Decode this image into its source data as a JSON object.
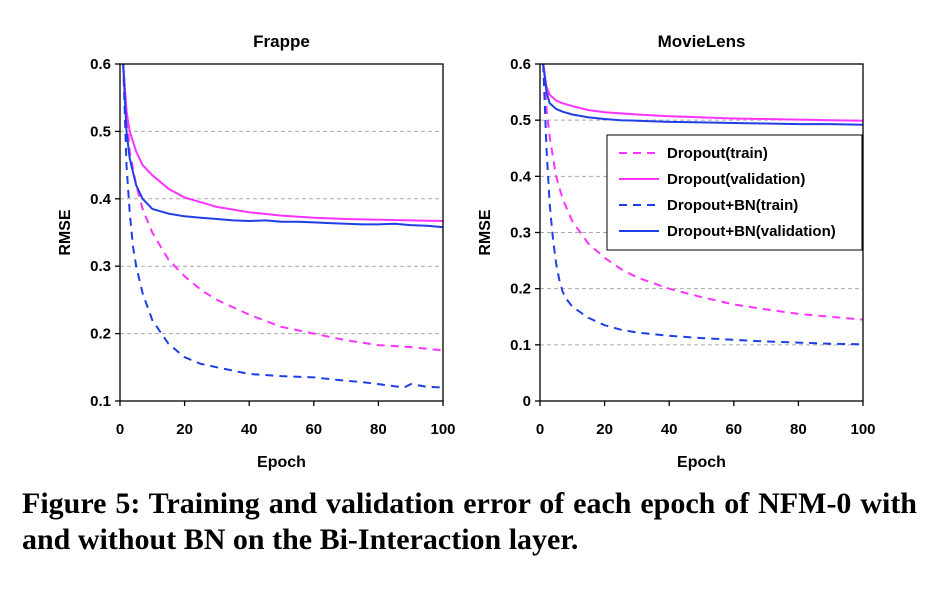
{
  "caption": "Figure 5: Training and validation error of each epoch of NFM-0 with and without BN on the Bi-Interaction layer.",
  "colors": {
    "dropout": "#ff33ff",
    "dropout_bn": "#1f3fe6",
    "grid": "#aaaaaa"
  },
  "chart_data": [
    {
      "type": "line",
      "title": "Frappe",
      "xlabel": "Epoch",
      "ylabel": "RMSE",
      "xlim": [
        0,
        100
      ],
      "ylim": [
        0.1,
        0.6
      ],
      "xticks": [
        0,
        20,
        40,
        60,
        80,
        100
      ],
      "yticks": [
        0.1,
        0.2,
        0.3,
        0.4,
        0.5,
        0.6
      ],
      "xtick_labels": [
        "0",
        "20",
        "40",
        "60",
        "80",
        "100"
      ],
      "ytick_labels": [
        "0.1",
        "0.2",
        "0.3",
        "0.4",
        "0.5",
        "0.6"
      ],
      "grid": "horizontal-dashed",
      "legend": null,
      "series": [
        {
          "key": "dropout_train",
          "color": "dropout",
          "dash": true,
          "x": [
            1,
            2,
            3,
            5,
            7,
            10,
            15,
            20,
            25,
            30,
            40,
            50,
            60,
            70,
            80,
            90,
            100
          ],
          "y": [
            0.6,
            0.53,
            0.47,
            0.42,
            0.385,
            0.35,
            0.31,
            0.285,
            0.265,
            0.25,
            0.228,
            0.21,
            0.2,
            0.19,
            0.183,
            0.18,
            0.175
          ]
        },
        {
          "key": "dropout_validation",
          "color": "dropout",
          "dash": false,
          "x": [
            1,
            2,
            3,
            5,
            7,
            10,
            15,
            20,
            25,
            30,
            40,
            50,
            60,
            70,
            80,
            90,
            100
          ],
          "y": [
            0.6,
            0.53,
            0.5,
            0.47,
            0.45,
            0.435,
            0.415,
            0.402,
            0.395,
            0.388,
            0.38,
            0.375,
            0.372,
            0.37,
            0.369,
            0.368,
            0.367
          ]
        },
        {
          "key": "dropout_bn_train",
          "color": "dropout_bn",
          "dash": true,
          "x": [
            1,
            2,
            3,
            4,
            5,
            7,
            10,
            15,
            20,
            25,
            30,
            40,
            50,
            60,
            70,
            75,
            80,
            85,
            88,
            90,
            95,
            100
          ],
          "y": [
            0.6,
            0.45,
            0.38,
            0.33,
            0.3,
            0.26,
            0.22,
            0.185,
            0.165,
            0.155,
            0.15,
            0.14,
            0.137,
            0.135,
            0.13,
            0.128,
            0.125,
            0.122,
            0.12,
            0.125,
            0.121,
            0.12
          ]
        },
        {
          "key": "dropout_bn_validation",
          "color": "dropout_bn",
          "dash": false,
          "x": [
            1,
            2,
            3,
            4,
            5,
            7,
            10,
            15,
            20,
            25,
            30,
            35,
            40,
            45,
            50,
            55,
            60,
            65,
            70,
            75,
            80,
            85,
            90,
            95,
            100
          ],
          "y": [
            0.6,
            0.5,
            0.46,
            0.44,
            0.42,
            0.4,
            0.385,
            0.378,
            0.374,
            0.372,
            0.37,
            0.368,
            0.367,
            0.368,
            0.366,
            0.366,
            0.365,
            0.364,
            0.363,
            0.362,
            0.362,
            0.363,
            0.361,
            0.36,
            0.358
          ]
        }
      ]
    },
    {
      "type": "line",
      "title": "MovieLens",
      "xlabel": "Epoch",
      "ylabel": "RMSE",
      "xlim": [
        0,
        100
      ],
      "ylim": [
        0,
        0.6
      ],
      "xticks": [
        0,
        20,
        40,
        60,
        80,
        100
      ],
      "yticks": [
        0,
        0.1,
        0.2,
        0.3,
        0.4,
        0.5,
        0.6
      ],
      "xtick_labels": [
        "0",
        "20",
        "40",
        "60",
        "80",
        "100"
      ],
      "ytick_labels": [
        "0",
        "0.1",
        "0.2",
        "0.3",
        "0.4",
        "0.5",
        "0.6"
      ],
      "grid": "horizontal-dashed",
      "legend": "top-right",
      "series": [
        {
          "key": "dropout_train",
          "name": "Dropout(train)",
          "color": "dropout",
          "dash": true,
          "x": [
            1,
            2,
            3,
            5,
            7,
            10,
            15,
            20,
            25,
            30,
            40,
            50,
            60,
            70,
            80,
            90,
            100
          ],
          "y": [
            0.6,
            0.52,
            0.47,
            0.4,
            0.36,
            0.32,
            0.28,
            0.255,
            0.235,
            0.22,
            0.2,
            0.185,
            0.172,
            0.163,
            0.155,
            0.15,
            0.145
          ]
        },
        {
          "key": "dropout_validation",
          "name": "Dropout(validation)",
          "color": "dropout",
          "dash": false,
          "x": [
            1,
            2,
            3,
            5,
            7,
            10,
            15,
            20,
            30,
            40,
            50,
            60,
            70,
            80,
            90,
            100
          ],
          "y": [
            0.6,
            0.56,
            0.545,
            0.535,
            0.53,
            0.525,
            0.518,
            0.514,
            0.51,
            0.507,
            0.505,
            0.503,
            0.502,
            0.501,
            0.5,
            0.499
          ]
        },
        {
          "key": "dropout_bn_train",
          "name": "Dropout+BN(train)",
          "color": "dropout_bn",
          "dash": true,
          "x": [
            1,
            2,
            3,
            4,
            5,
            6,
            7,
            8,
            10,
            15,
            20,
            25,
            30,
            40,
            50,
            60,
            70,
            80,
            90,
            100
          ],
          "y": [
            0.6,
            0.45,
            0.35,
            0.29,
            0.245,
            0.215,
            0.195,
            0.183,
            0.168,
            0.148,
            0.135,
            0.127,
            0.122,
            0.116,
            0.112,
            0.109,
            0.106,
            0.104,
            0.102,
            0.101
          ]
        },
        {
          "key": "dropout_bn_validation",
          "name": "Dropout+BN(validation)",
          "color": "dropout_bn",
          "dash": false,
          "x": [
            1,
            2,
            3,
            5,
            7,
            10,
            15,
            20,
            25,
            30,
            40,
            50,
            60,
            70,
            80,
            90,
            100
          ],
          "y": [
            0.6,
            0.55,
            0.53,
            0.52,
            0.515,
            0.51,
            0.505,
            0.502,
            0.5,
            0.499,
            0.497,
            0.496,
            0.495,
            0.494,
            0.493,
            0.493,
            0.492
          ]
        }
      ]
    }
  ]
}
